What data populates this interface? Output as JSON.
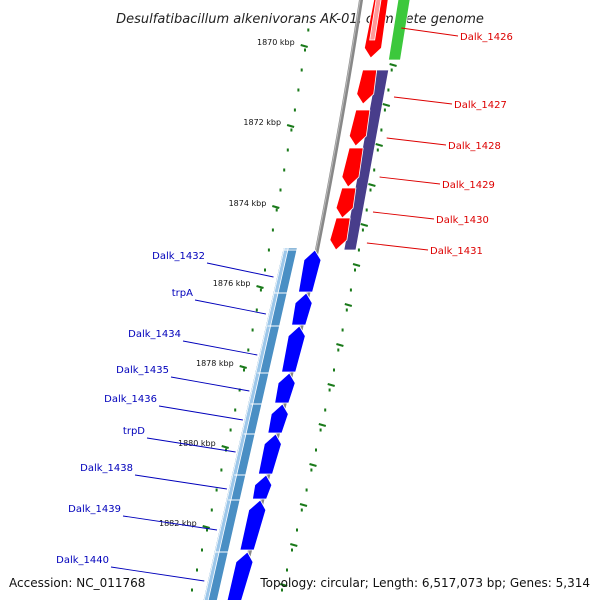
{
  "title": "Desulfatibacillum alkenivorans AK-01, complete genome",
  "footer": {
    "accession": "Accession: NC_011768",
    "topology": "Topology: circular; Length: 6,517,073 bp; Genes: 5,314"
  },
  "colors": {
    "plus_cds": "#ff0000",
    "plus_gene": "#483d8b",
    "plus_rna": "#3cc83c",
    "minus_gene": "#4a8fc4",
    "minus_cds": "#0000ff",
    "backbone": "#888888",
    "tick": "#1a7a1a",
    "label_plus": "#dd0000",
    "label_minus": "#0000bb"
  },
  "ticks": [
    {
      "label": "1870 kbp"
    },
    {
      "label": "1872 kbp"
    },
    {
      "label": "1874 kbp"
    },
    {
      "label": "1876 kbp"
    },
    {
      "label": "1878 kbp"
    },
    {
      "label": "1880 kbp"
    },
    {
      "label": "1882 kbp"
    }
  ],
  "plus_strand_genes": [
    {
      "name": "Dalk_1426"
    },
    {
      "name": "Dalk_1427"
    },
    {
      "name": "Dalk_1428"
    },
    {
      "name": "Dalk_1429"
    },
    {
      "name": "Dalk_1430"
    },
    {
      "name": "Dalk_1431"
    }
  ],
  "minus_strand_genes": [
    {
      "name": "Dalk_1432"
    },
    {
      "name": "trpA"
    },
    {
      "name": "Dalk_1434"
    },
    {
      "name": "Dalk_1435"
    },
    {
      "name": "Dalk_1436"
    },
    {
      "name": "trpD"
    },
    {
      "name": "Dalk_1438"
    },
    {
      "name": "Dalk_1439"
    },
    {
      "name": "Dalk_1440"
    }
  ]
}
